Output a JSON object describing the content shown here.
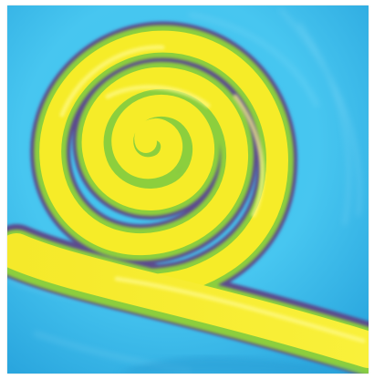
{
  "artwork": {
    "subject": "spiral-painting",
    "palette": {
      "sky_light": "#5fd0f2",
      "sky_mid": "#37b7e8",
      "sky_deep": "#2a9fd8",
      "spiral_yellow": "#f7ef2a",
      "spiral_highlight": "#fff86a",
      "spiral_green": "#8fd03a",
      "spiral_outline": "#5a4a8c"
    }
  }
}
